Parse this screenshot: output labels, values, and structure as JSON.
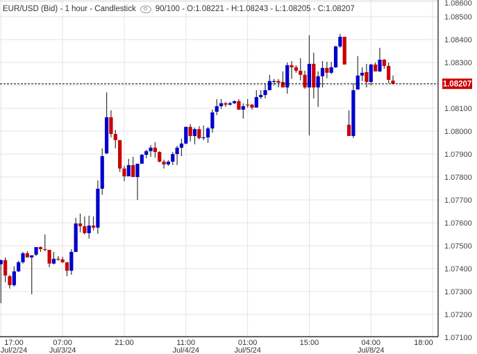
{
  "header": {
    "title": "EUR/USD (Bid) - 1 hour - Candlestick",
    "view_icon": "eye-icon",
    "stats": "90/100 - O:1.08221 - H:1.08243 - L:1.08205 - C:1.08207"
  },
  "colors": {
    "up": "#0000cc",
    "down": "#cc0000",
    "wick": "#333333",
    "grid": "#e3e3e3",
    "last_price_bg": "#cc0000"
  },
  "chart_data": {
    "type": "candlestick",
    "symbol": "EUR/USD (Bid)",
    "interval": "1 hour",
    "ylim": [
      1.071,
      1.086
    ],
    "grid": true,
    "last_price": "1.08207",
    "y_ticks": [
      "1.08600",
      "1.08500",
      "1.08400",
      "1.08300",
      "1.08100",
      "1.08000",
      "1.07900",
      "1.07800",
      "1.07700",
      "1.07600",
      "1.07500",
      "1.07400",
      "1.07300",
      "1.07200",
      "1.07100"
    ],
    "x_ticks": [
      {
        "index": 0,
        "time": "17:00",
        "date": "Jul/2/24"
      },
      {
        "index": 14,
        "time": "07:00",
        "date": "Jul/3/24"
      },
      {
        "index": 28,
        "time": "21:00",
        "date": ""
      },
      {
        "index": 42,
        "time": "11:00",
        "date": "Jul/4/24"
      },
      {
        "index": 56,
        "time": "01:00",
        "date": "Jul/5/24"
      },
      {
        "index": 70,
        "time": "15:00",
        "date": ""
      },
      {
        "index": 84,
        "time": "04:00",
        "date": "Jul/8/24"
      },
      {
        "index": 98,
        "time": "18:00",
        "date": ""
      }
    ],
    "ohlc_fields": [
      "open",
      "high",
      "low",
      "close"
    ],
    "candles": [
      [
        1.07419,
        1.0744,
        1.07249,
        1.07437
      ],
      [
        1.07437,
        1.07449,
        1.0734,
        1.0737
      ],
      [
        1.07367,
        1.07373,
        1.07313,
        1.07328
      ],
      [
        1.07328,
        1.0741,
        1.07322,
        1.07388
      ],
      [
        1.07388,
        1.07434,
        1.07385,
        1.07428
      ],
      [
        1.07428,
        1.07473,
        1.07422,
        1.07467
      ],
      [
        1.07467,
        1.07476,
        1.07449,
        1.07449
      ],
      [
        1.07449,
        1.07458,
        1.07288,
        1.07458
      ],
      [
        1.07461,
        1.07494,
        1.07455,
        1.07494
      ],
      [
        1.07494,
        1.07497,
        1.07473,
        1.07485
      ],
      [
        1.07485,
        1.07549,
        1.07476,
        1.07482
      ],
      [
        1.07482,
        1.07482,
        1.07406,
        1.07422
      ],
      [
        1.07422,
        1.07473,
        1.07419,
        1.07443
      ],
      [
        1.07443,
        1.07455,
        1.07434,
        1.0744
      ],
      [
        1.0744,
        1.07452,
        1.07425,
        1.07428
      ],
      [
        1.07428,
        1.07428,
        1.07367,
        1.07391
      ],
      [
        1.07391,
        1.07485,
        1.07373,
        1.07473
      ],
      [
        1.07473,
        1.07622,
        1.07473,
        1.07597
      ],
      [
        1.07597,
        1.0764,
        1.07558,
        1.07585
      ],
      [
        1.07585,
        1.07628,
        1.07549,
        1.07555
      ],
      [
        1.07555,
        1.07631,
        1.07531,
        1.07588
      ],
      [
        1.07588,
        1.07628,
        1.07567,
        1.07579
      ],
      [
        1.07579,
        1.07785,
        1.07552,
        1.07749
      ],
      [
        1.07749,
        1.07925,
        1.07722,
        1.07891
      ],
      [
        1.07903,
        1.0817,
        1.079,
        1.08061
      ],
      [
        1.08061,
        1.08091,
        1.07973,
        1.07988
      ],
      [
        1.07988,
        1.08006,
        1.07925,
        1.07961
      ],
      [
        1.07961,
        1.07961,
        1.07822,
        1.07837
      ],
      [
        1.07837,
        1.07849,
        1.07782,
        1.07803
      ],
      [
        1.07803,
        1.07879,
        1.07803,
        1.07852
      ],
      [
        1.07852,
        1.07888,
        1.078,
        1.078
      ],
      [
        1.078,
        1.07858,
        1.077,
        1.07858
      ],
      [
        1.07858,
        1.079,
        1.07858,
        1.07897
      ],
      [
        1.07897,
        1.07919,
        1.07882,
        1.07913
      ],
      [
        1.07913,
        1.0794,
        1.07888,
        1.07928
      ],
      [
        1.07928,
        1.07952,
        1.07885,
        1.07909
      ],
      [
        1.07909,
        1.07913,
        1.07864,
        1.07867
      ],
      [
        1.07867,
        1.07876,
        1.07837,
        1.07855
      ],
      [
        1.07855,
        1.07873,
        1.07849,
        1.07867
      ],
      [
        1.07867,
        1.07909,
        1.07852,
        1.079
      ],
      [
        1.079,
        1.07937,
        1.07852,
        1.07928
      ],
      [
        1.07928,
        1.07967,
        1.07891,
        1.07946
      ],
      [
        1.07946,
        1.08019,
        1.07943,
        1.08019
      ],
      [
        1.08019,
        1.08031,
        1.07955,
        1.07979
      ],
      [
        1.07979,
        1.08016,
        1.07943,
        1.08009
      ],
      [
        1.08009,
        1.08022,
        1.07964,
        1.0797
      ],
      [
        1.0797,
        1.08025,
        1.07961,
        1.07973
      ],
      [
        1.07973,
        1.08019,
        1.07949,
        1.08012
      ],
      [
        1.08012,
        1.08094,
        1.07994,
        1.08082
      ],
      [
        1.08085,
        1.0814,
        1.0807,
        1.08109
      ],
      [
        1.08109,
        1.0814,
        1.08097,
        1.08122
      ],
      [
        1.08122,
        1.08128,
        1.08106,
        1.08116
      ],
      [
        1.08116,
        1.08128,
        1.08112,
        1.08122
      ],
      [
        1.08122,
        1.08134,
        1.08119,
        1.08131
      ],
      [
        1.08131,
        1.0814,
        1.08094,
        1.08094
      ],
      [
        1.08094,
        1.08122,
        1.08055,
        1.08109
      ],
      [
        1.08116,
        1.0814,
        1.08103,
        1.08115
      ],
      [
        1.08116,
        1.08119,
        1.08094,
        1.08103
      ],
      [
        1.08103,
        1.08179,
        1.08103,
        1.08149
      ],
      [
        1.08149,
        1.08179,
        1.0814,
        1.08158
      ],
      [
        1.08158,
        1.08209,
        1.08143,
        1.08179
      ],
      [
        1.08179,
        1.08246,
        1.08179,
        1.08219
      ],
      [
        1.08215,
        1.08228,
        1.082,
        1.08219
      ],
      [
        1.08219,
        1.08228,
        1.08191,
        1.08212
      ],
      [
        1.08215,
        1.08261,
        1.08191,
        1.08191
      ],
      [
        1.08191,
        1.083,
        1.08164,
        1.08288
      ],
      [
        1.08288,
        1.08306,
        1.08228,
        1.08279
      ],
      [
        1.08279,
        1.08288,
        1.08255,
        1.08264
      ],
      [
        1.08264,
        1.08319,
        1.08222,
        1.08246
      ],
      [
        1.08246,
        1.08264,
        1.08185,
        1.08191
      ],
      [
        1.08191,
        1.08419,
        1.07982,
        1.08294
      ],
      [
        1.08294,
        1.08343,
        1.08143,
        1.08191
      ],
      [
        1.08191,
        1.08261,
        1.08106,
        1.0824
      ],
      [
        1.0824,
        1.08306,
        1.08191,
        1.08276
      ],
      [
        1.08276,
        1.08303,
        1.08231,
        1.08255
      ],
      [
        1.08255,
        1.08303,
        1.08249,
        1.08279
      ],
      [
        1.08279,
        1.08373,
        1.08276,
        1.0837
      ],
      [
        1.0837,
        1.08425,
        1.08364,
        1.08412
      ],
      [
        1.08412,
        1.08412,
        1.08291,
        1.08291
      ],
      [
        1.08028,
        1.08091,
        1.07979,
        1.07979
      ],
      [
        1.07979,
        1.08209,
        1.0797,
        1.08179
      ],
      [
        1.08182,
        1.08328,
        1.08182,
        1.08243
      ],
      [
        1.08243,
        1.08279,
        1.08219,
        1.08255
      ],
      [
        1.08258,
        1.08294,
        1.08191,
        1.08215
      ],
      [
        1.08215,
        1.08294,
        1.082,
        1.08291
      ],
      [
        1.08291,
        1.083,
        1.08261,
        1.08261
      ],
      [
        1.08261,
        1.08364,
        1.08258,
        1.08312
      ],
      [
        1.08312,
        1.08315,
        1.08273,
        1.08285
      ],
      [
        1.08285,
        1.083,
        1.08209,
        1.08224
      ],
      [
        1.08221,
        1.08243,
        1.08205,
        1.08207
      ]
    ]
  }
}
